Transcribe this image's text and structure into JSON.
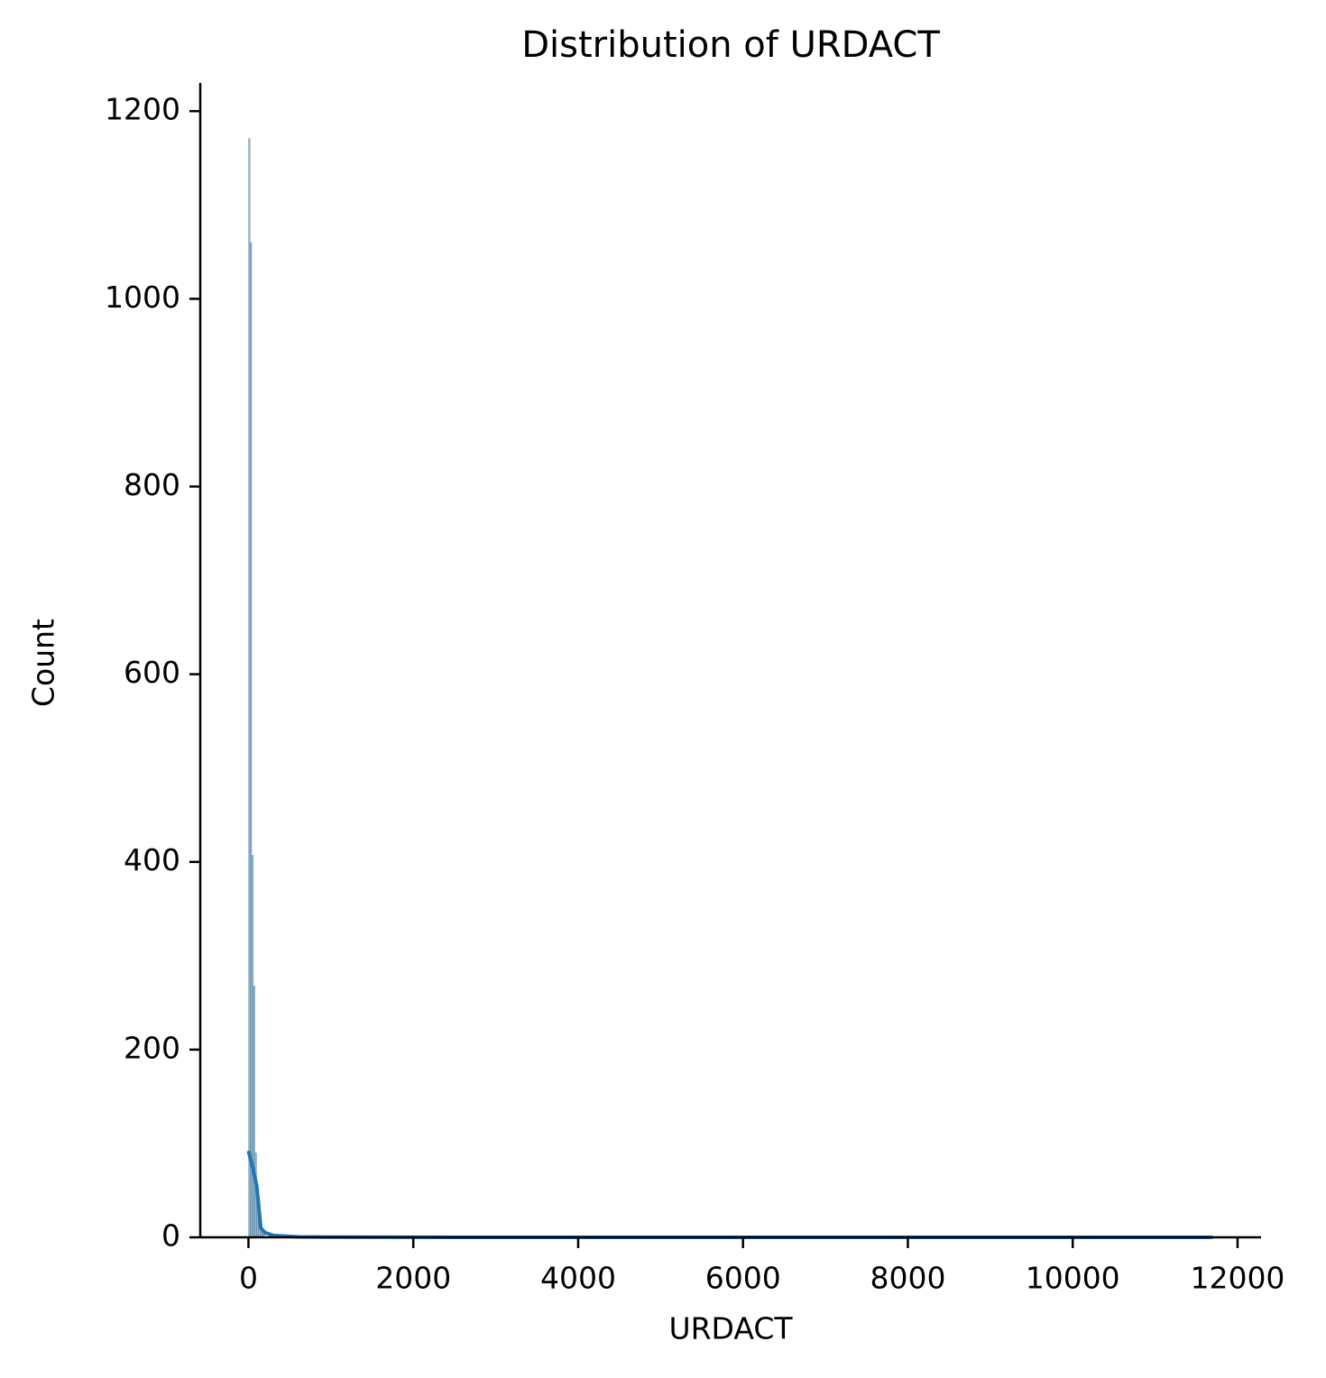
{
  "chart_data": {
    "type": "histogram",
    "title": "Distribution of URDACT",
    "x_label": "URDACT",
    "y_label": "Count",
    "bins": [
      0,
      20,
      40,
      60,
      80,
      100,
      120,
      140,
      160,
      180,
      200
    ],
    "counts": [
      1171,
      1060,
      407,
      268,
      90,
      40,
      20,
      12,
      8,
      5
    ],
    "color": "#1f77b4",
    "kde": {
      "x": [
        0,
        50,
        100,
        150,
        200,
        300,
        600,
        1000,
        3000,
        6000,
        9000,
        11700
      ],
      "values": [
        92,
        75,
        55,
        10,
        5,
        2,
        0.5,
        0.2,
        0,
        0,
        0,
        0
      ]
    },
    "xlim": [
      -585,
      12285
    ],
    "xticks": [
      0,
      2000,
      4000,
      6000,
      8000,
      10000,
      12000
    ],
    "ylim": [
      0,
      1230
    ],
    "yticks": [
      0,
      200,
      400,
      600,
      800,
      1000,
      1200
    ]
  }
}
